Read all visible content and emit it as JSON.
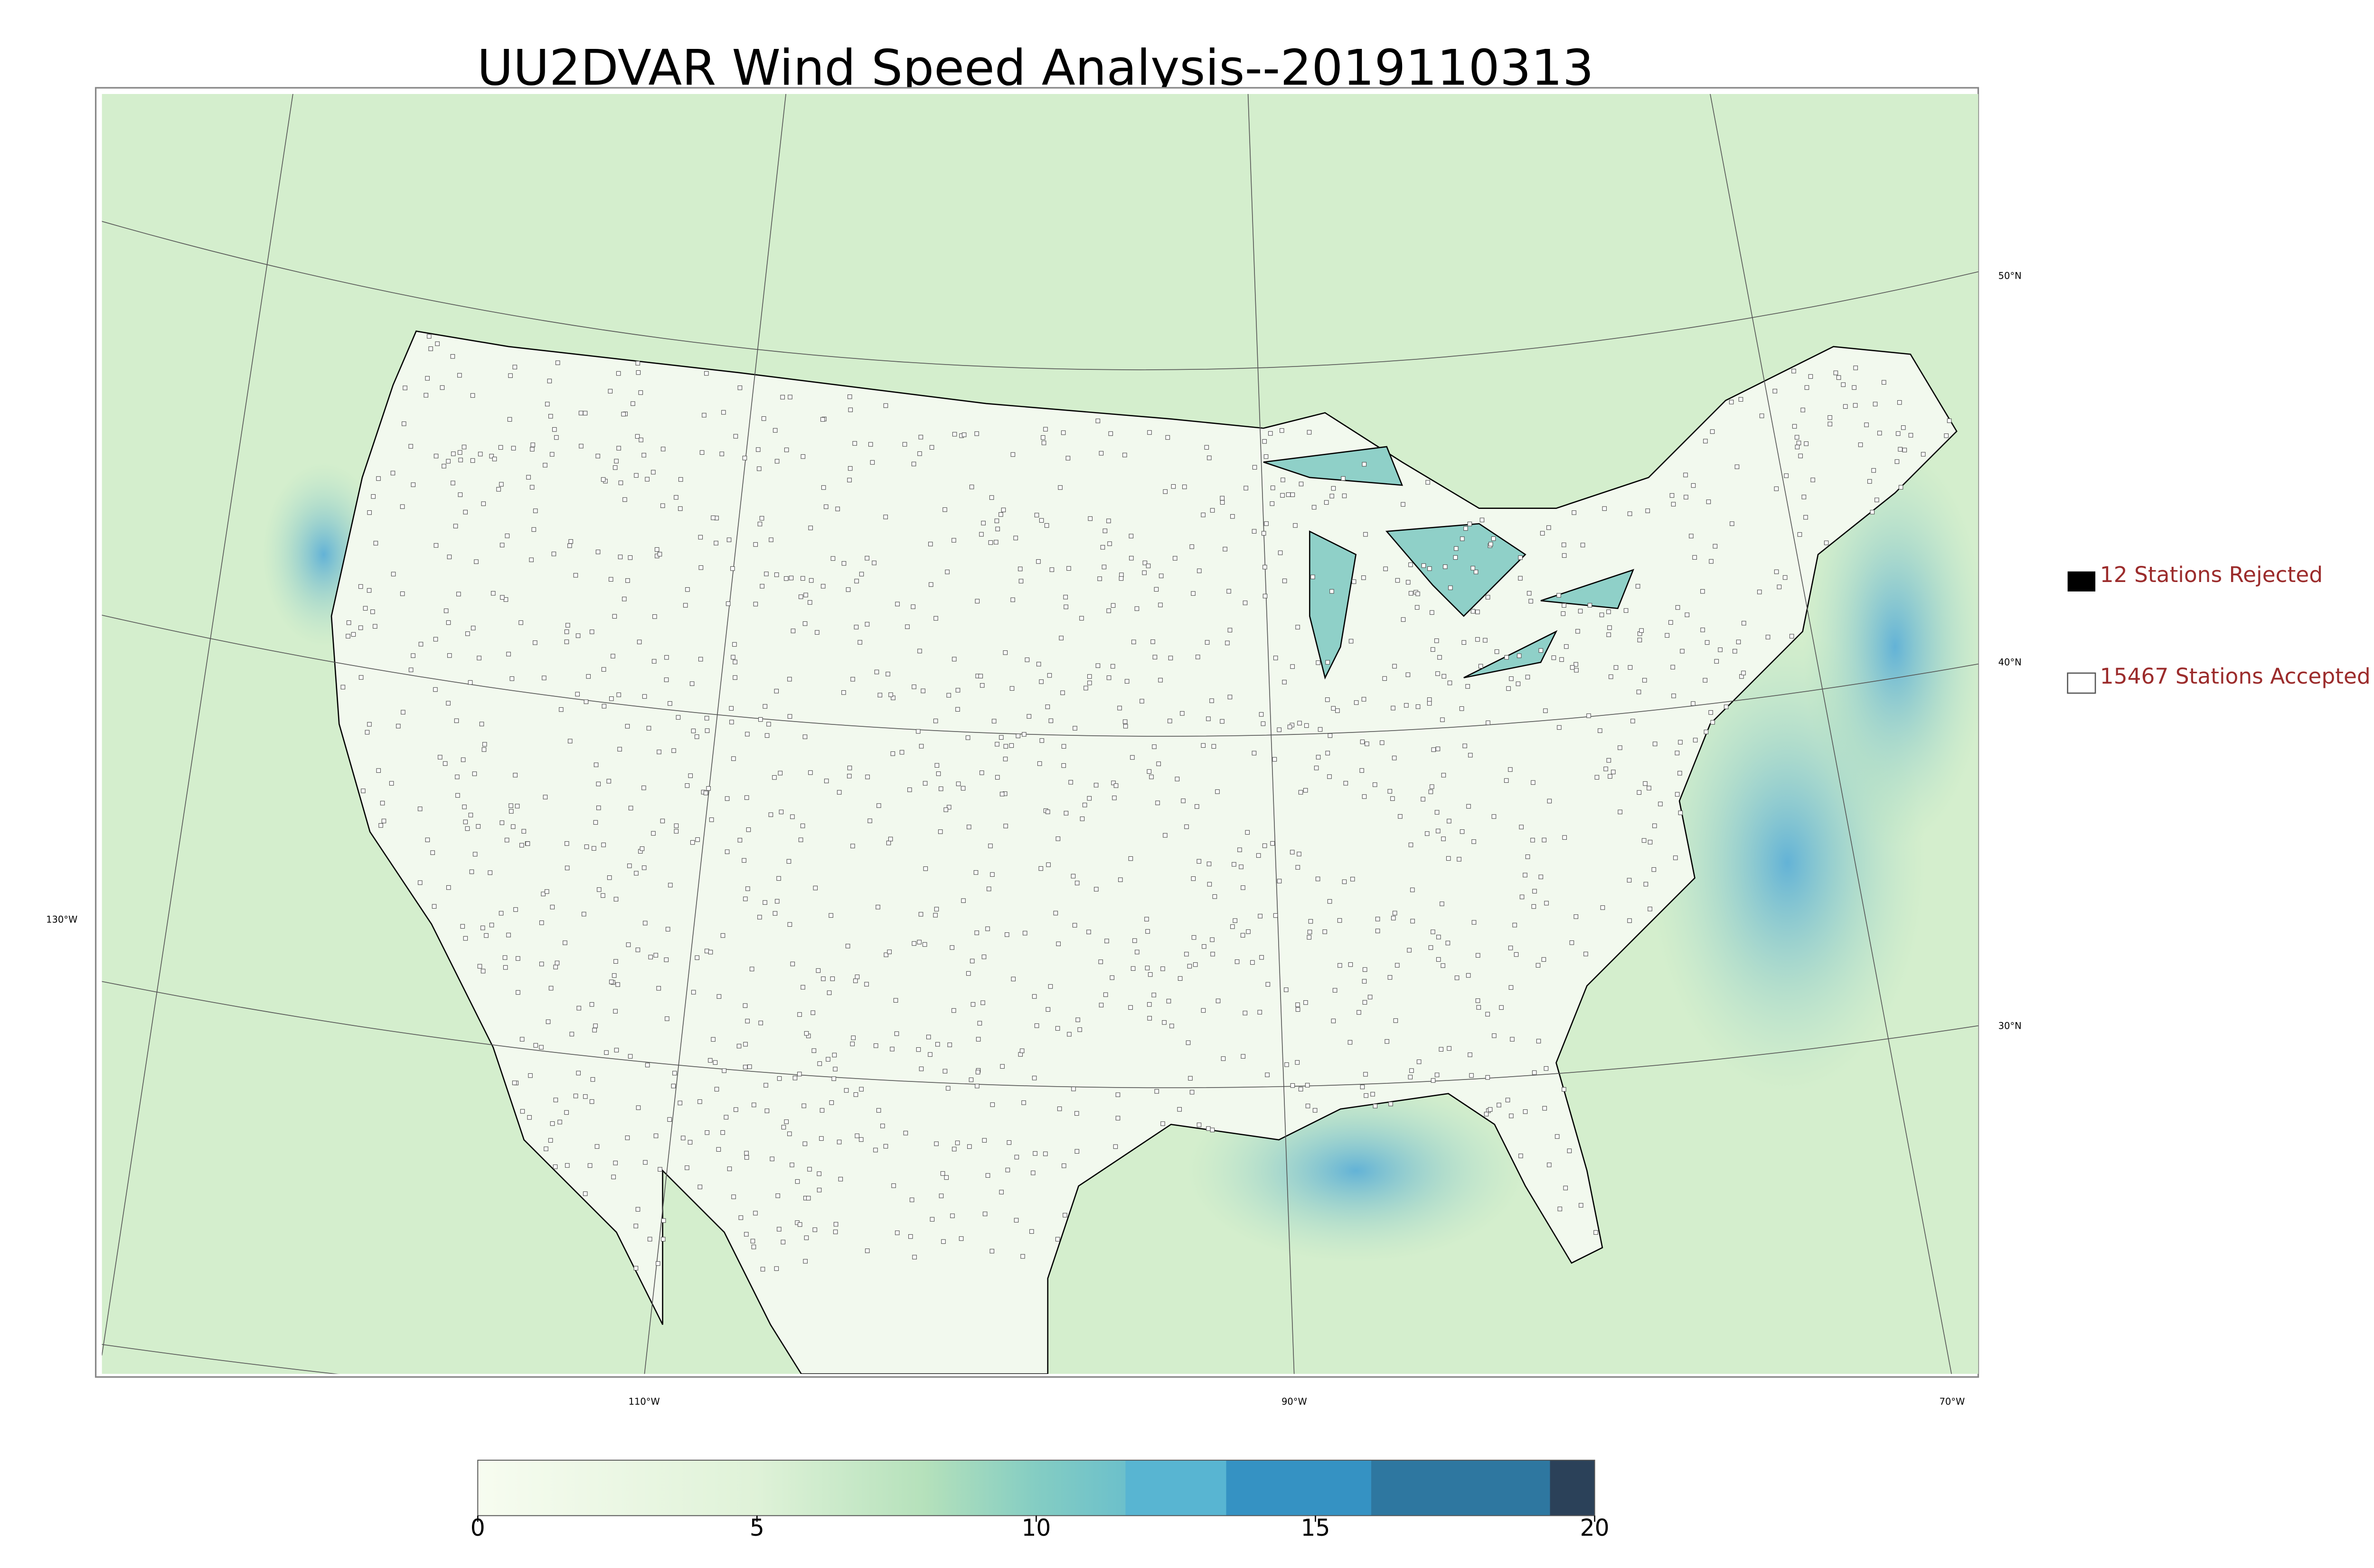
{
  "title": "UU2DVAR Wind Speed Analysis--2019110313",
  "map": {
    "lat_labels": [
      "50°N",
      "40°N",
      "30°N"
    ],
    "lon_labels": [
      "130°W",
      "110°W",
      "90°W",
      "70°W"
    ]
  },
  "legend": [
    "12 Stations Rejected",
    "15467 Stations Accepted"
  ],
  "colorbar": {
    "xlim": [
      0,
      20
    ],
    "xticks": [
      0,
      5,
      10,
      15,
      20
    ]
  }
}
